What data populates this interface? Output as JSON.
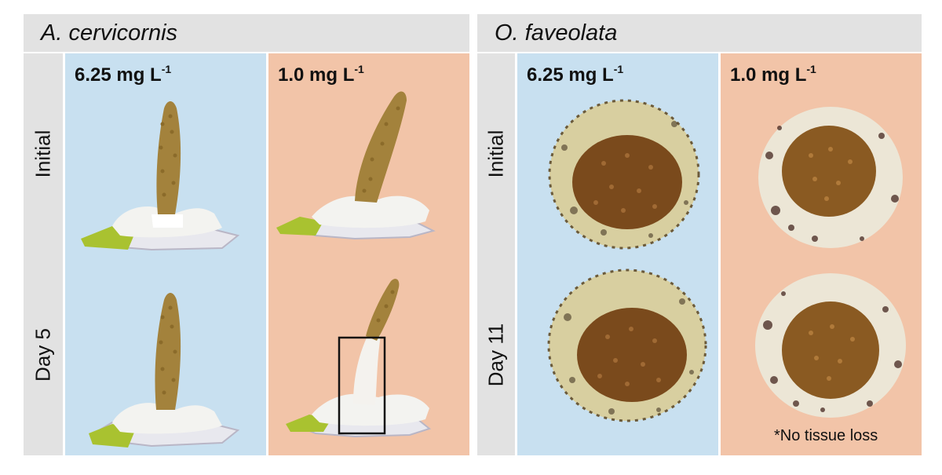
{
  "panels": [
    {
      "species": "A. cervicornis",
      "conditions": [
        {
          "label": "6.25 mg L",
          "exponent": "-1"
        },
        {
          "label": "1.0 mg L",
          "exponent": "-1"
        }
      ],
      "rows": [
        "Initial",
        "Day 5"
      ]
    },
    {
      "species": "O. faveolata",
      "conditions": [
        {
          "label": "6.25 mg L",
          "exponent": "-1"
        },
        {
          "label": "1.0 mg L",
          "exponent": "-1"
        }
      ],
      "rows": [
        "Initial",
        "Day 11"
      ],
      "note": "*No tissue loss"
    }
  ],
  "colors": {
    "control_bg": "#c8e0f0",
    "treatment_bg": "#f2c4a8",
    "label_bar": "#e2e2e2",
    "branch": "#9a7a3a",
    "base_white": "#f4f4f2",
    "tag_green": "#9ab82a",
    "tissue_brown": "#7a4a1c"
  },
  "icons": {
    "coral_branch": "acropora-fragment",
    "coral_plug": "orbicella-plug",
    "box": "highlight-box"
  }
}
